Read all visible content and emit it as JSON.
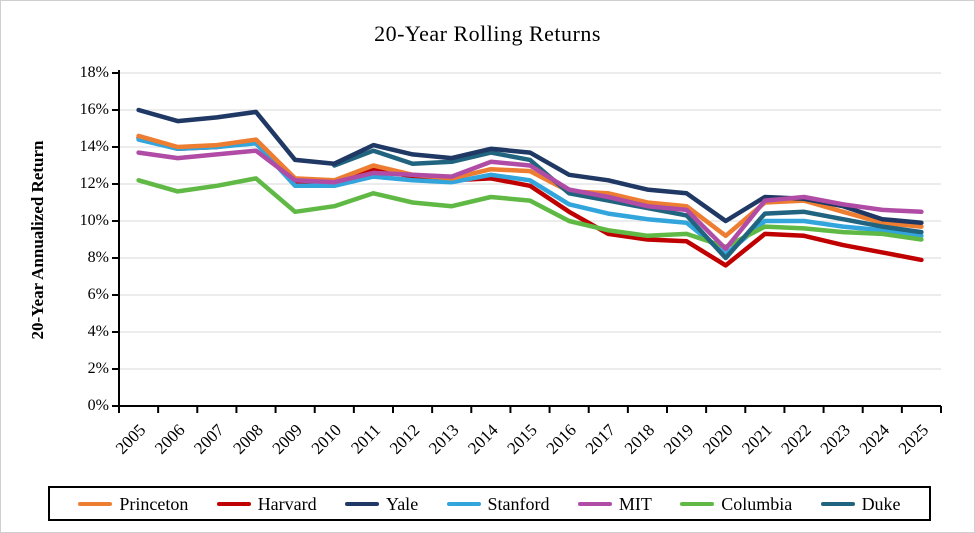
{
  "chart_data": {
    "type": "line",
    "title": "20-Year Rolling Returns",
    "xlabel": "",
    "ylabel": "20-Year Annualized Return",
    "ylim": [
      0,
      18
    ],
    "y_tick_step": 2,
    "y_tick_suffix": "%",
    "grid": "horizontal",
    "legend_position": "bottom",
    "gridline_color": "#d9d9d9",
    "axis_color": "#000000",
    "categories": [
      "2005",
      "2006",
      "2007",
      "2008",
      "2009",
      "2010",
      "2011",
      "2012",
      "2013",
      "2014",
      "2015",
      "2016",
      "2017",
      "2018",
      "2019",
      "2020",
      "2021",
      "2022",
      "2023",
      "2024",
      "2025"
    ],
    "series": [
      {
        "name": "Princeton",
        "color": "#ED7D31",
        "values": [
          14.6,
          14.0,
          14.1,
          14.4,
          12.3,
          12.2,
          13.0,
          12.5,
          12.3,
          12.8,
          12.7,
          11.6,
          11.5,
          11.0,
          10.8,
          9.2,
          11.0,
          11.1,
          10.5,
          9.9,
          9.7
        ]
      },
      {
        "name": "Harvard",
        "color": "#C00000",
        "values": [
          14.5,
          13.9,
          14.0,
          14.3,
          12.1,
          12.0,
          12.8,
          12.4,
          12.2,
          12.3,
          11.9,
          10.5,
          9.3,
          9.0,
          8.9,
          7.6,
          9.3,
          9.2,
          8.7,
          8.3,
          7.9
        ]
      },
      {
        "name": "Yale",
        "color": "#1F3864",
        "values": [
          16.0,
          15.4,
          15.6,
          15.9,
          13.3,
          13.1,
          14.1,
          13.6,
          13.4,
          13.9,
          13.7,
          12.5,
          12.2,
          11.7,
          11.5,
          10.0,
          11.3,
          11.2,
          10.8,
          10.1,
          9.9
        ]
      },
      {
        "name": "Stanford",
        "color": "#31A5DC",
        "values": [
          14.4,
          13.9,
          14.0,
          14.2,
          11.9,
          11.9,
          12.4,
          12.2,
          12.1,
          12.5,
          12.2,
          10.9,
          10.4,
          10.1,
          9.9,
          8.2,
          10.0,
          10.0,
          9.7,
          9.5,
          9.2
        ]
      },
      {
        "name": "MIT",
        "color": "#B04CA5",
        "values": [
          13.7,
          13.4,
          13.6,
          13.8,
          12.2,
          12.1,
          12.6,
          12.5,
          12.4,
          13.2,
          13.0,
          11.7,
          11.3,
          10.8,
          10.6,
          8.5,
          11.1,
          11.3,
          10.9,
          10.6,
          10.5
        ]
      },
      {
        "name": "Columbia",
        "color": "#5FB944",
        "values": [
          12.2,
          11.6,
          11.9,
          12.3,
          10.5,
          10.8,
          11.5,
          11.0,
          10.8,
          11.3,
          11.1,
          10.0,
          9.5,
          9.2,
          9.3,
          8.6,
          9.7,
          9.6,
          9.4,
          9.3,
          9.0
        ]
      },
      {
        "name": "Duke",
        "color": "#21647F",
        "values": [
          null,
          null,
          null,
          null,
          null,
          13.0,
          13.8,
          13.1,
          13.2,
          13.7,
          13.3,
          11.5,
          11.1,
          10.7,
          10.3,
          8.0,
          10.4,
          10.5,
          10.1,
          9.7,
          9.4
        ]
      }
    ],
    "draw_order": [
      "Harvard",
      "Stanford",
      "Columbia",
      "Princeton",
      "Duke",
      "Yale",
      "MIT"
    ]
  }
}
